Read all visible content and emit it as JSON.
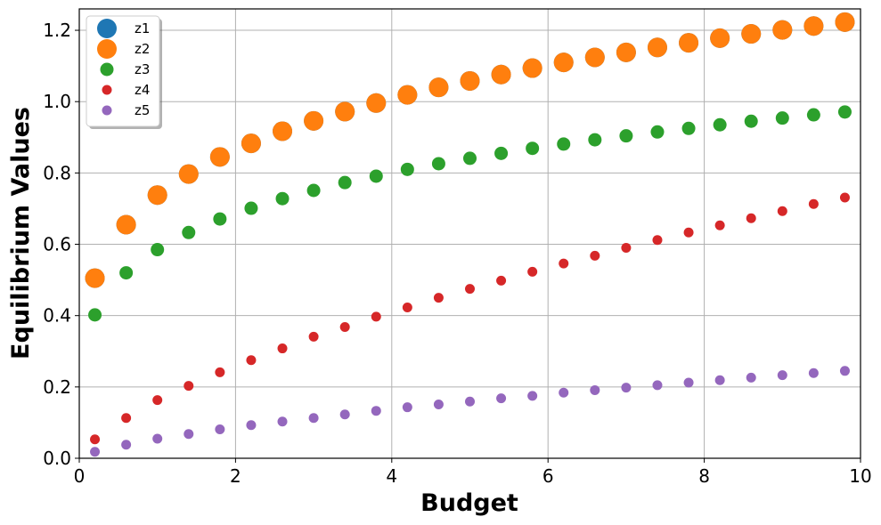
{
  "chart_data": {
    "type": "scatter",
    "xlabel": "Budget",
    "ylabel": "Equilibrium Values",
    "xlim": [
      0,
      10
    ],
    "ylim": [
      0,
      1.26
    ],
    "xticks": [
      0,
      2,
      4,
      6,
      8,
      10
    ],
    "xtick_labels": [
      "0",
      "2",
      "4",
      "6",
      "8",
      "10"
    ],
    "yticks": [
      0.0,
      0.2,
      0.4,
      0.6,
      0.8,
      1.0,
      1.2
    ],
    "ytick_labels": [
      "0.0",
      "0.2",
      "0.4",
      "0.6",
      "0.8",
      "1.0",
      "1.2"
    ],
    "grid": true,
    "legend_position": "top-left",
    "x": [
      0.2,
      0.6,
      1.0,
      1.4,
      1.8,
      2.2,
      2.6,
      3.0,
      3.4,
      3.8,
      4.2,
      4.6,
      5.0,
      5.4,
      5.8,
      6.2,
      6.6,
      7.0,
      7.4,
      7.8,
      8.2,
      8.6,
      9.0,
      9.4,
      9.8
    ],
    "series": [
      {
        "name": "z1",
        "color": "#1f77b4",
        "marker": "large",
        "values": [
          0.505,
          0.655,
          0.738,
          0.797,
          0.845,
          0.883,
          0.917,
          0.946,
          0.972,
          0.996,
          1.019,
          1.04,
          1.058,
          1.076,
          1.094,
          1.11,
          1.124,
          1.138,
          1.152,
          1.165,
          1.178,
          1.19,
          1.201,
          1.212,
          1.223
        ]
      },
      {
        "name": "z2",
        "color": "#ff7f0e",
        "marker": "large",
        "values": [
          0.505,
          0.655,
          0.738,
          0.797,
          0.845,
          0.883,
          0.917,
          0.946,
          0.972,
          0.996,
          1.019,
          1.04,
          1.058,
          1.076,
          1.094,
          1.11,
          1.124,
          1.138,
          1.152,
          1.165,
          1.178,
          1.19,
          1.201,
          1.212,
          1.223
        ]
      },
      {
        "name": "z3",
        "color": "#2ca02c",
        "marker": "medium",
        "values": [
          0.402,
          0.52,
          0.585,
          0.633,
          0.671,
          0.701,
          0.728,
          0.751,
          0.773,
          0.791,
          0.81,
          0.826,
          0.841,
          0.855,
          0.869,
          0.881,
          0.893,
          0.904,
          0.915,
          0.925,
          0.935,
          0.945,
          0.954,
          0.963,
          0.971
        ]
      },
      {
        "name": "z4",
        "color": "#d62728",
        "marker": "small",
        "values": [
          0.053,
          0.113,
          0.163,
          0.203,
          0.241,
          0.275,
          0.308,
          0.341,
          0.368,
          0.397,
          0.423,
          0.45,
          0.475,
          0.498,
          0.523,
          0.546,
          0.568,
          0.59,
          0.612,
          0.633,
          0.653,
          0.673,
          0.693,
          0.713,
          0.731
        ]
      },
      {
        "name": "z5",
        "color": "#9467bd",
        "marker": "small",
        "values": [
          0.018,
          0.038,
          0.055,
          0.068,
          0.081,
          0.093,
          0.103,
          0.113,
          0.123,
          0.133,
          0.143,
          0.151,
          0.159,
          0.168,
          0.175,
          0.184,
          0.191,
          0.198,
          0.205,
          0.212,
          0.219,
          0.226,
          0.233,
          0.239,
          0.245
        ]
      }
    ]
  }
}
